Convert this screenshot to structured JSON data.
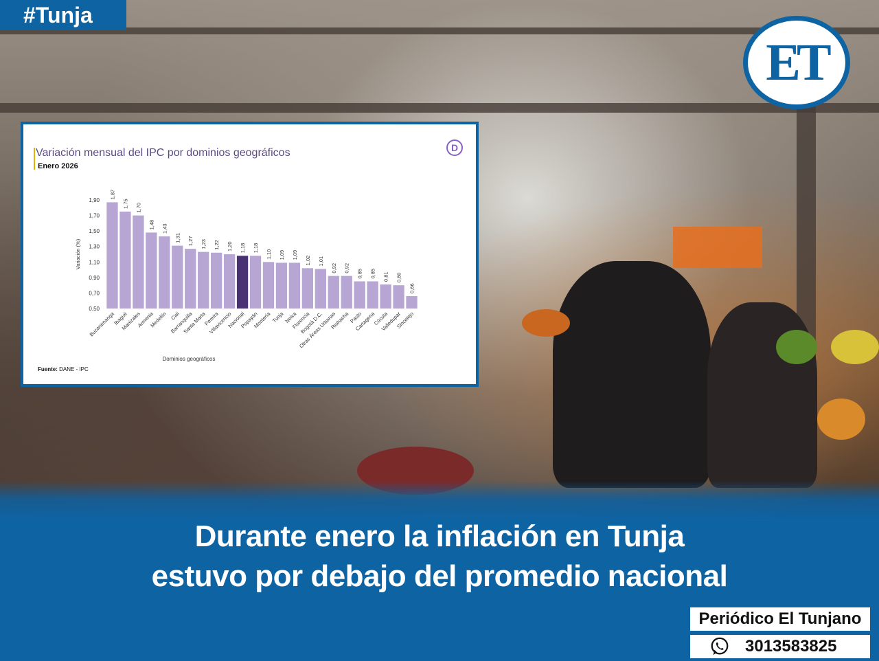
{
  "tag": "#Tunja",
  "logo_text": "ET",
  "headline": {
    "line1": "Durante enero la inflación en Tunja",
    "line2": "estuvo por debajo del promedio nacional"
  },
  "brand": "Periódico El Tunjano",
  "phone": "3013583825",
  "icons": [
    "whatsapp-icon",
    "dane-logo-icon"
  ],
  "colors": {
    "band": "#0e63a3",
    "bar": "#b7a6d3",
    "highlight_bar": "#4a3173",
    "title": "#5a4a82"
  },
  "chart_data": {
    "type": "bar",
    "title": "Variación mensual del IPC por dominios geográficos",
    "subtitle": "Enero 2026",
    "xlabel": "Dominios geográficos",
    "ylabel": "Variación (%)",
    "ylim": [
      0.5,
      1.9
    ],
    "yticks": [
      "0,50",
      "0,70",
      "0,90",
      "1,10",
      "1,30",
      "1,50",
      "1,70",
      "1,90"
    ],
    "source_label": "Fuente:",
    "source": "DANE - IPC",
    "highlight": "Nacional",
    "categories": [
      "Bucaramanga",
      "Ibagué",
      "Manizales",
      "Armenia",
      "Medellín",
      "Cali",
      "Barranquilla",
      "Santa Marta",
      "Pereira",
      "Villavicencio",
      "Nacional",
      "Popayán",
      "Montería",
      "Tunja",
      "Neiva",
      "Florencia",
      "Bogotá D.C.",
      "Otras Áreas Urbanas",
      "Riohacha",
      "Pasto",
      "Cartagena",
      "Cúcuta",
      "Valledupar",
      "Sincelejo"
    ],
    "values": [
      1.87,
      1.75,
      1.7,
      1.48,
      1.43,
      1.31,
      1.27,
      1.23,
      1.22,
      1.2,
      1.18,
      1.18,
      1.1,
      1.09,
      1.09,
      1.02,
      1.01,
      0.92,
      0.92,
      0.85,
      0.85,
      0.81,
      0.8,
      0.66
    ],
    "labels": [
      "1,87",
      "1,75",
      "1,70",
      "1,48",
      "1,43",
      "1,31",
      "1,27",
      "1,23",
      "1,22",
      "1,20",
      "1,18",
      "1,18",
      "1,10",
      "1,09",
      "1,09",
      "1,02",
      "1,01",
      "0,92",
      "0,92",
      "0,85",
      "0,85",
      "0,81",
      "0,80",
      "0,66"
    ]
  }
}
